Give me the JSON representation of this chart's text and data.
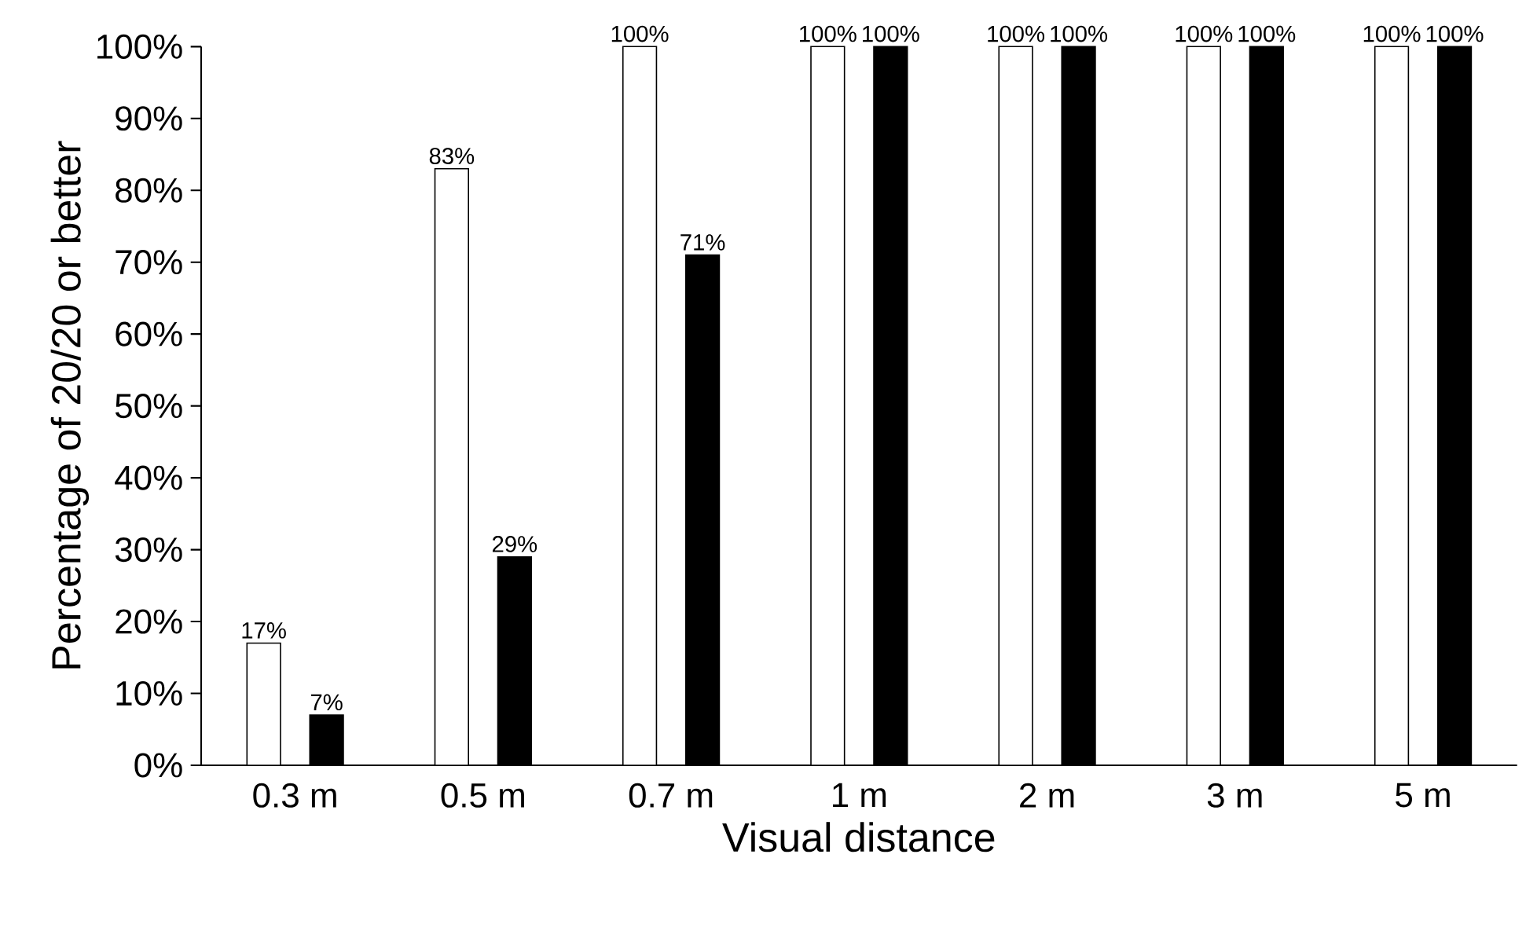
{
  "chart_data": {
    "type": "bar",
    "xlabel": "Visual distance",
    "ylabel": "Percentage of 20/20 or better",
    "categories": [
      "0.3 m",
      "0.5 m",
      "0.7 m",
      "1 m",
      "2 m",
      "3 m",
      "5 m"
    ],
    "series": [
      {
        "color": "#ffffff",
        "values": [
          17,
          83,
          100,
          100,
          100,
          100,
          100
        ],
        "value_labels": [
          "17%",
          "83%",
          "100%",
          "100%",
          "100%",
          "100%",
          "100%"
        ]
      },
      {
        "color": "#000000",
        "values": [
          7,
          29,
          71,
          100,
          100,
          100,
          100
        ],
        "value_labels": [
          "7%",
          "29%",
          "71%",
          "100%",
          "100%",
          "100%",
          "100%"
        ]
      }
    ],
    "ylim": [
      0,
      100
    ],
    "yticks": [
      {
        "value": 0,
        "label": "0%"
      },
      {
        "value": 10,
        "label": "10%"
      },
      {
        "value": 20,
        "label": "20%"
      },
      {
        "value": 30,
        "label": "30%"
      },
      {
        "value": 40,
        "label": "40%"
      },
      {
        "value": 50,
        "label": "50%"
      },
      {
        "value": 60,
        "label": "60%"
      },
      {
        "value": 70,
        "label": "70%"
      },
      {
        "value": 80,
        "label": "80%"
      },
      {
        "value": 90,
        "label": "90%"
      },
      {
        "value": 100,
        "label": "100%"
      }
    ]
  }
}
